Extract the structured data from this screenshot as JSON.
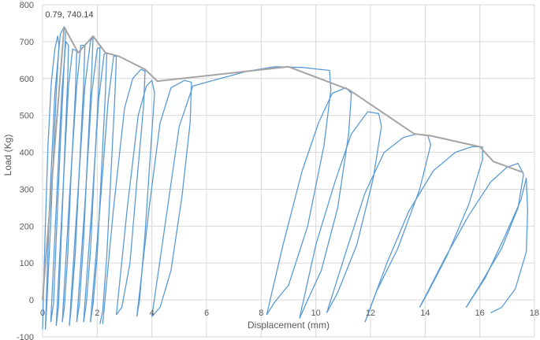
{
  "chart_data": {
    "type": "line",
    "title": "",
    "xlabel": "Displacement (mm)",
    "ylabel": "Load (Kg)",
    "xlim": [
      0,
      18
    ],
    "ylim": [
      -100,
      800
    ],
    "x_ticks": [
      0,
      2,
      4,
      6,
      8,
      10,
      12,
      14,
      16,
      18
    ],
    "y_ticks": [
      -100,
      0,
      100,
      200,
      300,
      400,
      500,
      600,
      700,
      800
    ],
    "grid": "vertical-and-horizontal",
    "legend": "none",
    "annotation": {
      "text": "0.79, 740.14",
      "x": 0.79,
      "y": 740.14
    },
    "series": [
      {
        "role": "hysteresis",
        "color": "#5b9bd5",
        "loops": [
          [
            [
              0.0,
              -80
            ],
            [
              0.1,
              200
            ],
            [
              0.2,
              420
            ],
            [
              0.32,
              590
            ],
            [
              0.45,
              680
            ],
            [
              0.55,
              715
            ],
            [
              0.6,
              690
            ],
            [
              0.5,
              560
            ],
            [
              0.4,
              400
            ],
            [
              0.28,
              180
            ],
            [
              0.15,
              -20
            ],
            [
              0.1,
              -80
            ]
          ],
          [
            [
              0.1,
              -80
            ],
            [
              0.25,
              250
            ],
            [
              0.45,
              560
            ],
            [
              0.65,
              720
            ],
            [
              0.79,
              740.14
            ],
            [
              0.85,
              735
            ],
            [
              0.78,
              620
            ],
            [
              0.65,
              420
            ],
            [
              0.52,
              200
            ],
            [
              0.4,
              -10
            ],
            [
              0.3,
              -60
            ]
          ],
          [
            [
              0.3,
              -60
            ],
            [
              0.5,
              250
            ],
            [
              0.7,
              560
            ],
            [
              0.85,
              700
            ],
            [
              0.95,
              690
            ],
            [
              0.92,
              600
            ],
            [
              0.82,
              420
            ],
            [
              0.7,
              200
            ],
            [
              0.58,
              -20
            ],
            [
              0.5,
              -70
            ]
          ],
          [
            [
              0.5,
              -70
            ],
            [
              0.75,
              300
            ],
            [
              0.95,
              580
            ],
            [
              1.1,
              680
            ],
            [
              1.25,
              675
            ],
            [
              1.2,
              560
            ],
            [
              1.05,
              350
            ],
            [
              0.92,
              120
            ],
            [
              0.8,
              -20
            ],
            [
              0.72,
              -60
            ]
          ],
          [
            [
              0.72,
              -60
            ],
            [
              1.0,
              300
            ],
            [
              1.25,
              580
            ],
            [
              1.4,
              690
            ],
            [
              1.55,
              690
            ],
            [
              1.5,
              580
            ],
            [
              1.35,
              360
            ],
            [
              1.2,
              130
            ],
            [
              1.05,
              -20
            ],
            [
              0.98,
              -70
            ]
          ],
          [
            [
              0.98,
              -70
            ],
            [
              1.3,
              300
            ],
            [
              1.55,
              580
            ],
            [
              1.75,
              700
            ],
            [
              1.85,
              715
            ],
            [
              1.8,
              620
            ],
            [
              1.65,
              400
            ],
            [
              1.5,
              160
            ],
            [
              1.35,
              -10
            ],
            [
              1.25,
              -60
            ]
          ],
          [
            [
              1.25,
              -60
            ],
            [
              1.55,
              260
            ],
            [
              1.8,
              560
            ],
            [
              2.0,
              680
            ],
            [
              2.1,
              685
            ],
            [
              2.05,
              570
            ],
            [
              1.9,
              360
            ],
            [
              1.75,
              130
            ],
            [
              1.6,
              -10
            ],
            [
              1.5,
              -60
            ]
          ],
          [
            [
              1.5,
              -60
            ],
            [
              1.8,
              250
            ],
            [
              2.05,
              540
            ],
            [
              2.25,
              665
            ],
            [
              2.35,
              670
            ],
            [
              2.3,
              560
            ],
            [
              2.15,
              340
            ],
            [
              2.0,
              120
            ],
            [
              1.85,
              -10
            ],
            [
              1.75,
              -60
            ]
          ],
          [
            [
              1.75,
              -60
            ],
            [
              2.1,
              250
            ],
            [
              2.4,
              540
            ],
            [
              2.6,
              660
            ],
            [
              2.7,
              660
            ],
            [
              2.65,
              560
            ],
            [
              2.5,
              340
            ],
            [
              2.35,
              120
            ],
            [
              2.2,
              -30
            ],
            [
              2.1,
              -65
            ]
          ],
          [
            [
              2.2,
              -65
            ],
            [
              2.6,
              250
            ],
            [
              3.0,
              520
            ],
            [
              3.3,
              600
            ],
            [
              3.6,
              625
            ],
            [
              3.75,
              620
            ],
            [
              3.7,
              530
            ],
            [
              3.45,
              320
            ],
            [
              3.2,
              100
            ],
            [
              2.9,
              -20
            ],
            [
              2.7,
              -40
            ]
          ],
          [
            [
              2.7,
              -40
            ],
            [
              3.1,
              250
            ],
            [
              3.5,
              500
            ],
            [
              3.8,
              580
            ],
            [
              4.0,
              595
            ],
            [
              4.1,
              560
            ],
            [
              3.95,
              400
            ],
            [
              3.75,
              180
            ],
            [
              3.55,
              0
            ],
            [
              3.45,
              -45
            ]
          ],
          [
            [
              3.45,
              -45
            ],
            [
              3.9,
              250
            ],
            [
              4.3,
              480
            ],
            [
              4.7,
              575
            ],
            [
              5.2,
              595
            ],
            [
              5.45,
              590
            ],
            [
              5.4,
              480
            ],
            [
              5.1,
              280
            ],
            [
              4.7,
              80
            ],
            [
              4.3,
              -20
            ],
            [
              4.0,
              -45
            ]
          ],
          [
            [
              4.0,
              -45
            ],
            [
              5.0,
              470
            ],
            [
              5.5,
              580
            ],
            [
              6.5,
              600
            ],
            [
              7.5,
              620
            ],
            [
              8.5,
              632
            ],
            [
              9.5,
              630
            ],
            [
              10.5,
              622
            ],
            [
              10.55,
              570
            ],
            [
              10.3,
              420
            ],
            [
              9.7,
              200
            ],
            [
              9.0,
              40
            ],
            [
              8.5,
              -5
            ],
            [
              8.2,
              -40
            ]
          ],
          [
            [
              8.2,
              -40
            ],
            [
              8.8,
              150
            ],
            [
              9.5,
              350
            ],
            [
              10.1,
              480
            ],
            [
              10.6,
              560
            ],
            [
              11.1,
              575
            ],
            [
              11.3,
              560
            ],
            [
              11.2,
              450
            ],
            [
              10.8,
              250
            ],
            [
              10.2,
              80
            ],
            [
              9.7,
              0
            ],
            [
              9.4,
              -50
            ]
          ],
          [
            [
              9.4,
              -50
            ],
            [
              10.0,
              150
            ],
            [
              10.7,
              320
            ],
            [
              11.3,
              450
            ],
            [
              11.9,
              510
            ],
            [
              12.3,
              505
            ],
            [
              12.4,
              470
            ],
            [
              12.1,
              330
            ],
            [
              11.5,
              150
            ],
            [
              10.8,
              20
            ],
            [
              10.4,
              -35
            ]
          ],
          [
            [
              10.4,
              -35
            ],
            [
              11.1,
              130
            ],
            [
              11.8,
              290
            ],
            [
              12.5,
              400
            ],
            [
              13.2,
              440
            ],
            [
              13.7,
              450
            ],
            [
              14.1,
              445
            ],
            [
              14.2,
              420
            ],
            [
              13.8,
              300
            ],
            [
              13.0,
              140
            ],
            [
              12.2,
              20
            ],
            [
              11.8,
              -60
            ]
          ],
          [
            [
              11.8,
              -60
            ],
            [
              12.6,
              100
            ],
            [
              13.4,
              240
            ],
            [
              14.3,
              350
            ],
            [
              15.1,
              400
            ],
            [
              15.7,
              415
            ],
            [
              16.1,
              415
            ],
            [
              16.1,
              380
            ],
            [
              15.6,
              260
            ],
            [
              14.8,
              120
            ],
            [
              14.1,
              20
            ],
            [
              13.8,
              -20
            ]
          ],
          [
            [
              13.8,
              -20
            ],
            [
              14.7,
              110
            ],
            [
              15.6,
              230
            ],
            [
              16.4,
              320
            ],
            [
              17.0,
              360
            ],
            [
              17.4,
              370
            ],
            [
              17.6,
              340
            ],
            [
              17.4,
              250
            ],
            [
              16.8,
              140
            ],
            [
              16.0,
              40
            ],
            [
              15.5,
              -20
            ]
          ],
          [
            [
              15.5,
              -20
            ],
            [
              16.2,
              60
            ],
            [
              16.9,
              170
            ],
            [
              17.5,
              270
            ],
            [
              17.7,
              330
            ],
            [
              17.75,
              240
            ],
            [
              17.7,
              130
            ],
            [
              17.3,
              30
            ],
            [
              16.8,
              -20
            ],
            [
              16.4,
              -35
            ]
          ]
        ]
      },
      {
        "role": "envelope",
        "color": "#a5a5a5",
        "points": [
          [
            0,
            0
          ],
          [
            0.79,
            740.14
          ],
          [
            1.3,
            670
          ],
          [
            1.85,
            715
          ],
          [
            2.3,
            670
          ],
          [
            2.8,
            660
          ],
          [
            3.75,
            625
          ],
          [
            4.2,
            593
          ],
          [
            9.0,
            632
          ],
          [
            11.2,
            570
          ],
          [
            12.4,
            510
          ],
          [
            13.6,
            450
          ],
          [
            14.2,
            445
          ],
          [
            16.0,
            415
          ],
          [
            16.5,
            375
          ],
          [
            17.6,
            345
          ]
        ]
      }
    ]
  }
}
